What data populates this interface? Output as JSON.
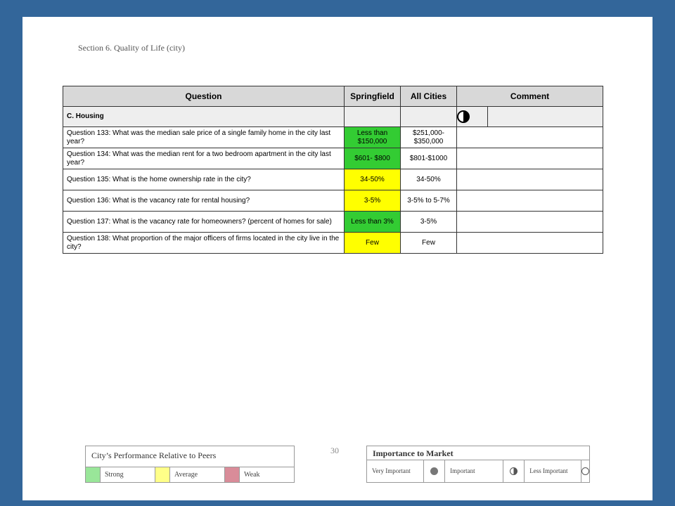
{
  "section_title": "Section 6. Quality of Life (city)",
  "table": {
    "headers": {
      "question": "Question",
      "springfield": "Springfield",
      "all_cities": "All Cities",
      "comment": "Comment"
    },
    "category": {
      "label": "C. Housing",
      "importance_icon": "half-circle-icon"
    },
    "rows": [
      {
        "question": "Question 133: What was the median sale price of a single family home in the city last year?",
        "springfield": "Less than $150,000",
        "springfield_color": "#33cc33",
        "all_cities": "$251,000- $350,000",
        "comment": ""
      },
      {
        "question": "Question 134: What was the median rent for a two bedroom apartment in the city last year?",
        "springfield": "$601- $800",
        "springfield_color": "#33cc33",
        "all_cities": "$801-$1000",
        "comment": ""
      },
      {
        "question": "Question 135: What is the home ownership rate in the city?",
        "springfield": "34-50%",
        "springfield_color": "#ffff00",
        "all_cities": "34-50%",
        "comment": ""
      },
      {
        "question": "Question 136: What is the vacancy rate for rental housing?",
        "springfield": "3-5%",
        "springfield_color": "#ffff00",
        "all_cities": "3-5% to 5-7%",
        "comment": ""
      },
      {
        "question": "Question 137: What is the vacancy rate for homeowners? (percent of homes for sale)",
        "springfield": "Less than 3%",
        "springfield_color": "#33cc33",
        "all_cities": "3-5%",
        "comment": ""
      },
      {
        "question": "Question 138: What proportion of the major officers of firms located in the city live in the city?",
        "springfield": "Few",
        "springfield_color": "#ffff00",
        "all_cities": "Few",
        "comment": ""
      }
    ]
  },
  "page_number": "30",
  "performance_legend": {
    "title": "City’s Performance Relative to Peers",
    "items": [
      {
        "label": "Strong",
        "color": "#99e699"
      },
      {
        "label": "Average",
        "color": "#ffff88"
      },
      {
        "label": "Weak",
        "color": "#d98c99"
      }
    ]
  },
  "importance_legend": {
    "title": "Importance to Market",
    "items": [
      {
        "label": "Very Important",
        "icon": "filled-circle-icon"
      },
      {
        "label": "Important",
        "icon": "half-circle-icon"
      },
      {
        "label": "Less Important",
        "icon": "empty-circle-icon"
      }
    ]
  }
}
